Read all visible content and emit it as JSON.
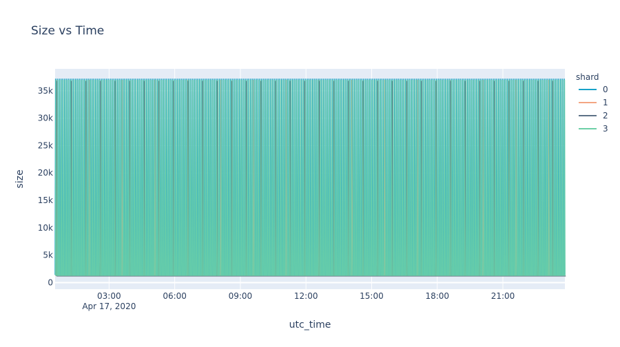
{
  "chart_data": {
    "type": "line",
    "title": "Size vs Time",
    "xlabel": "utc_time",
    "ylabel": "size",
    "x_range": [
      "2020-04-17T00:32:00",
      "2020-04-17T23:50:00"
    ],
    "ylim": [
      -1200,
      39000
    ],
    "x_ticks": [
      {
        "value": "2020-04-17T03:00:00",
        "label": "03:00"
      },
      {
        "value": "2020-04-17T06:00:00",
        "label": "06:00"
      },
      {
        "value": "2020-04-17T09:00:00",
        "label": "09:00"
      },
      {
        "value": "2020-04-17T12:00:00",
        "label": "12:00"
      },
      {
        "value": "2020-04-17T15:00:00",
        "label": "15:00"
      },
      {
        "value": "2020-04-17T18:00:00",
        "label": "18:00"
      },
      {
        "value": "2020-04-17T21:00:00",
        "label": "21:00"
      }
    ],
    "x_date_label": "Apr 17, 2020",
    "y_ticks": [
      {
        "value": 0,
        "label": "0"
      },
      {
        "value": 5000,
        "label": "5k"
      },
      {
        "value": 10000,
        "label": "10k"
      },
      {
        "value": 15000,
        "label": "15k"
      },
      {
        "value": 20000,
        "label": "20k"
      },
      {
        "value": 25000,
        "label": "25k"
      },
      {
        "value": 30000,
        "label": "30k"
      },
      {
        "value": 35000,
        "label": "35k"
      }
    ],
    "legend_title": "shard",
    "legend_position": "right",
    "grid": true,
    "plot_background": "#e5ecf6",
    "series": [
      {
        "name": "0",
        "color": "#17a2c8",
        "low": 1400,
        "high": 37200,
        "width": 1.6,
        "step_minutes": 5,
        "offset_minutes": 0,
        "thin_minutes": 0
      },
      {
        "name": "1",
        "color": "#f4a582",
        "low": 1200,
        "high": 37000,
        "width": 1.0,
        "step_minutes": 5,
        "offset_minutes": 2,
        "thin_minutes": 90
      },
      {
        "name": "2",
        "color": "#5d7186",
        "low": 1200,
        "high": 36800,
        "width": 1.4,
        "step_minutes": 5,
        "offset_minutes": 3,
        "thin_minutes": 40
      },
      {
        "name": "3",
        "color": "#6ccfa6",
        "low": 1300,
        "high": 37000,
        "width": 1.3,
        "step_minutes": 5,
        "offset_minutes": 1,
        "thin_minutes": 0
      }
    ]
  }
}
